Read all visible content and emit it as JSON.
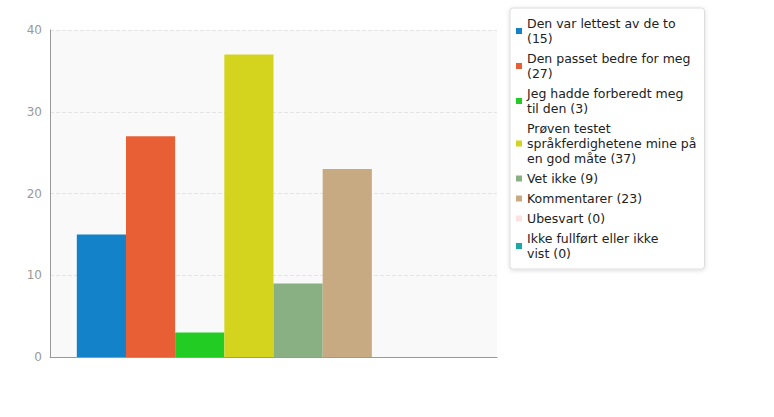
{
  "chart_data": {
    "type": "bar",
    "categories": [
      null
    ],
    "series": [
      {
        "name": "Den var lettest av de to (15)",
        "color": "#1482c8",
        "values": [
          15
        ]
      },
      {
        "name": "Den passet bedre for meg (27)",
        "color": "#e85f36",
        "values": [
          27
        ]
      },
      {
        "name": "Jeg hadde forberedt meg til den (3)",
        "color": "#22cc22",
        "values": [
          3
        ]
      },
      {
        "name": "Prøven testet språkferdighetene mine på en god måte (37)",
        "color": "#d4d41e",
        "values": [
          37
        ]
      },
      {
        "name": "Vet ikke (9)",
        "color": "#88b082",
        "values": [
          9
        ]
      },
      {
        "name": "Kommentarer (23)",
        "color": "#c8aa82",
        "values": [
          23
        ]
      },
      {
        "name": "Ubesvart (0)",
        "color": "#ffe0e0",
        "values": [
          0
        ]
      },
      {
        "name": "Ikke fullført eller ikke vist (0)",
        "color": "#1aa8a8",
        "values": [
          0
        ]
      }
    ],
    "ylim": [
      0,
      40
    ],
    "yticks": [
      0,
      10,
      20,
      30,
      40
    ],
    "grid": true,
    "legend": "top-right",
    "tick_labels": "y"
  }
}
